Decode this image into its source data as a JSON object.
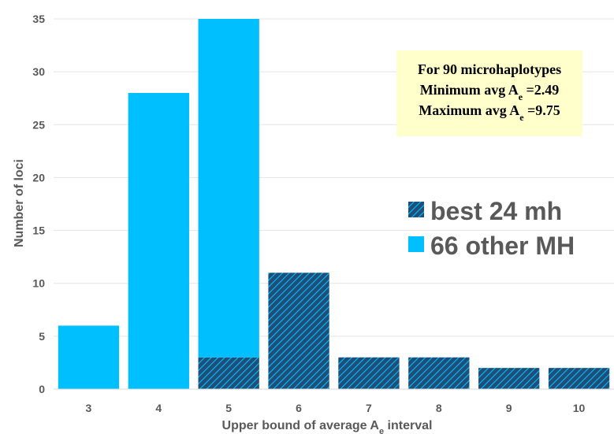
{
  "chart_data": {
    "type": "bar",
    "stacked": true,
    "categories": [
      "3",
      "4",
      "5",
      "6",
      "7",
      "8",
      "9",
      "10"
    ],
    "series": [
      {
        "name": "best 24 mh",
        "values": [
          0,
          0,
          3,
          11,
          3,
          3,
          2,
          2
        ],
        "color": "#1f4e79",
        "pattern": "hatched"
      },
      {
        "name": "66 other MH",
        "values": [
          6,
          28,
          32,
          0,
          0,
          0,
          0,
          0
        ],
        "color": "#00bfff"
      }
    ],
    "xlabel": {
      "prefix": "Upper bound of average A",
      "sub": "e",
      "suffix": " interval"
    },
    "ylabel": "Number of  loci",
    "ylim": [
      0,
      35
    ],
    "yticks": [
      0,
      5,
      10,
      15,
      20,
      25,
      30,
      35
    ],
    "grid": "horizontal",
    "legend": {
      "position": "right"
    },
    "annotation": {
      "line1": "For 90 microhaplotypes",
      "line2": {
        "prefix": "Minimum avg A",
        "sub": "e",
        "suffix": " =2.49"
      },
      "line3": {
        "prefix": "Maximum avg A",
        "sub": "e",
        "suffix": " =9.75"
      },
      "background": "#ffffcc"
    }
  }
}
